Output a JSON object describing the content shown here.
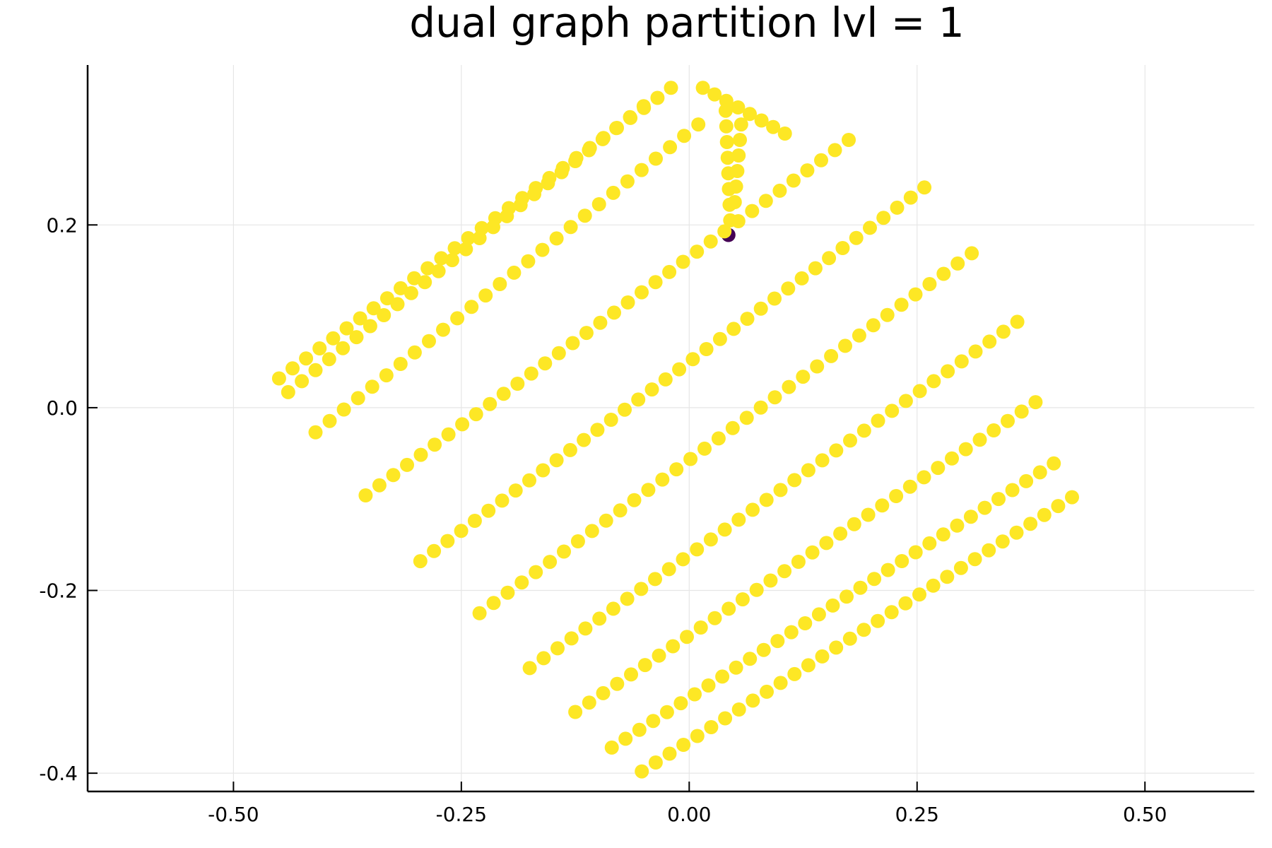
{
  "chart_data": {
    "type": "scatter",
    "title": "dual graph partition lvl = 1",
    "xlabel": "",
    "ylabel": "",
    "xlim": [
      -0.66,
      0.62
    ],
    "ylim": [
      -0.42,
      0.375
    ],
    "x_ticks": [
      -0.5,
      -0.25,
      0.0,
      0.25,
      0.5
    ],
    "x_tick_labels": [
      "-0.50",
      "-0.25",
      "0.00",
      "0.25",
      "0.50"
    ],
    "y_ticks": [
      -0.4,
      -0.2,
      0.0,
      0.2
    ],
    "y_tick_labels": [
      "-0.4",
      "-0.2",
      "0.0",
      "0.2"
    ],
    "grid": true,
    "legend": "none",
    "colors": {
      "part_a": "#fde725",
      "part_b": "#440154"
    },
    "series": [
      {
        "color_key": "part_b",
        "points": [
          [
            0.043,
            0.189
          ]
        ]
      },
      {
        "color_key": "part_a",
        "strips": [
          {
            "from": [
              -0.45,
              0.032
            ],
            "to": [
              -0.02,
              0.35
            ],
            "n": 30
          },
          {
            "from": [
              -0.44,
              0.017
            ],
            "to": [
              -0.05,
              0.33
            ],
            "n": 27
          },
          {
            "from": [
              -0.41,
              -0.027
            ],
            "to": [
              0.01,
              0.31
            ],
            "n": 28
          },
          {
            "from": [
              -0.355,
              -0.096
            ],
            "to": [
              0.175,
              0.293
            ],
            "n": 36
          },
          {
            "from": [
              -0.295,
              -0.168
            ],
            "to": [
              0.258,
              0.241
            ],
            "n": 38
          },
          {
            "from": [
              -0.23,
              -0.225
            ],
            "to": [
              0.31,
              0.169
            ],
            "n": 36
          },
          {
            "from": [
              -0.175,
              -0.285
            ],
            "to": [
              0.36,
              0.094
            ],
            "n": 36
          },
          {
            "from": [
              -0.125,
              -0.333
            ],
            "to": [
              0.38,
              0.006
            ],
            "n": 34
          },
          {
            "from": [
              -0.085,
              -0.372
            ],
            "to": [
              0.4,
              -0.061
            ],
            "n": 33
          },
          {
            "from": [
              -0.052,
              -0.398
            ],
            "to": [
              0.42,
              -0.098
            ],
            "n": 32
          },
          {
            "from": [
              0.015,
              0.35
            ],
            "to": [
              0.105,
              0.3
            ],
            "n": 8
          },
          {
            "from": [
              0.04,
              0.325
            ],
            "to": [
              0.045,
              0.205
            ],
            "n": 8
          },
          {
            "from": [
              0.057,
              0.31
            ],
            "to": [
              0.05,
              0.225
            ],
            "n": 6
          }
        ],
        "points": []
      }
    ]
  }
}
